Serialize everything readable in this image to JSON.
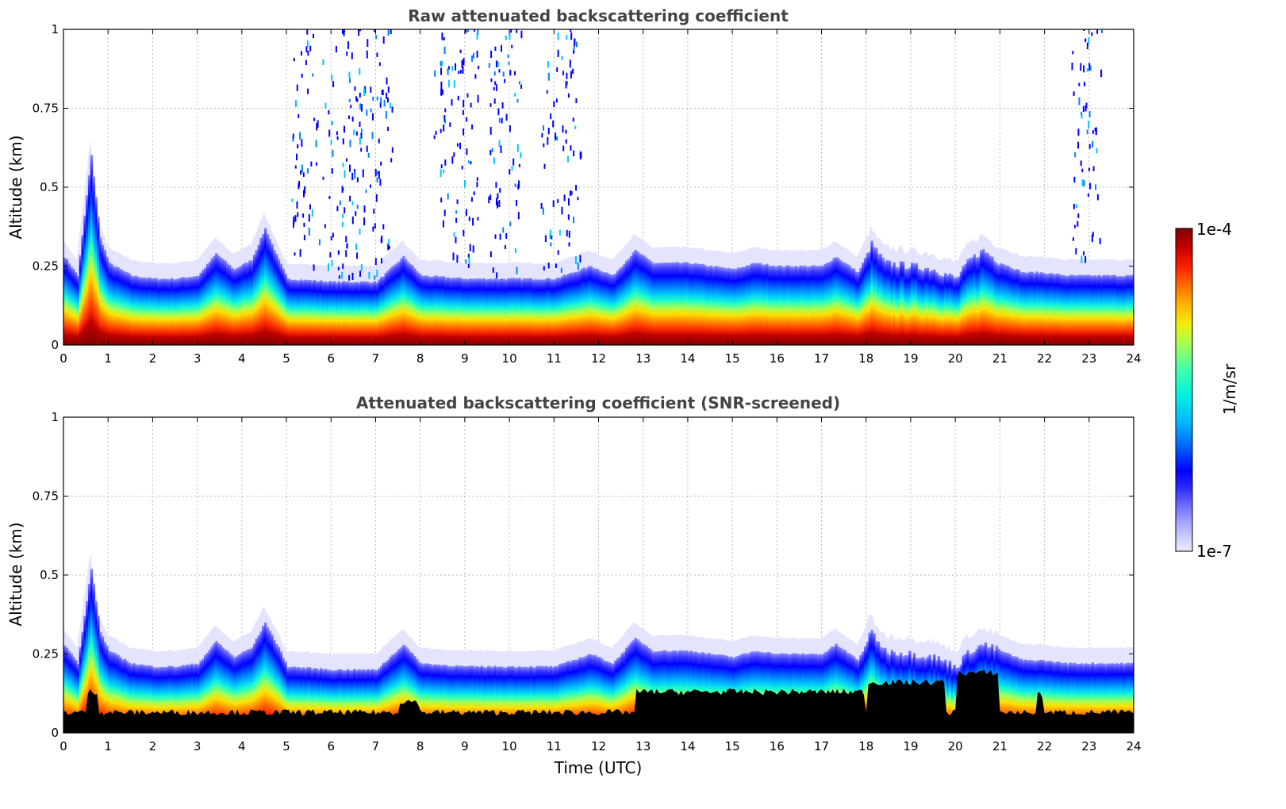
{
  "chart_data": [
    {
      "type": "heatmap",
      "title": "Raw attenuated backscattering coefficient",
      "xlabel": "",
      "ylabel": "Altitude (km)",
      "xlim": [
        0,
        24
      ],
      "ylim": [
        0,
        1
      ],
      "x_ticks": [
        "0",
        "1",
        "2",
        "3",
        "4",
        "5",
        "6",
        "7",
        "8",
        "9",
        "10",
        "11",
        "12",
        "13",
        "14",
        "15",
        "16",
        "17",
        "18",
        "19",
        "20",
        "21",
        "22",
        "23",
        "24"
      ],
      "y_ticks": [
        "0",
        "0.25",
        "0.5",
        "0.75",
        "1"
      ],
      "grid": true,
      "colorscale": "jet",
      "screened": false,
      "boundary_layer_top_km": [
        [
          0,
          0.28
        ],
        [
          0.3,
          0.22
        ],
        [
          0.6,
          0.6
        ],
        [
          0.8,
          0.34
        ],
        [
          1.0,
          0.26
        ],
        [
          1.5,
          0.22
        ],
        [
          2.0,
          0.21
        ],
        [
          2.5,
          0.21
        ],
        [
          3.0,
          0.22
        ],
        [
          3.4,
          0.29
        ],
        [
          3.8,
          0.24
        ],
        [
          4.2,
          0.27
        ],
        [
          4.5,
          0.37
        ],
        [
          4.8,
          0.27
        ],
        [
          5.0,
          0.21
        ],
        [
          6.0,
          0.2
        ],
        [
          7.0,
          0.2
        ],
        [
          7.6,
          0.28
        ],
        [
          8.0,
          0.22
        ],
        [
          9.0,
          0.21
        ],
        [
          10.0,
          0.21
        ],
        [
          11.0,
          0.21
        ],
        [
          11.8,
          0.25
        ],
        [
          12.3,
          0.22
        ],
        [
          12.8,
          0.3
        ],
        [
          13.2,
          0.26
        ],
        [
          14.0,
          0.26
        ],
        [
          15.0,
          0.24
        ],
        [
          15.5,
          0.26
        ],
        [
          16.0,
          0.25
        ],
        [
          17.0,
          0.25
        ],
        [
          17.3,
          0.28
        ],
        [
          17.8,
          0.23
        ],
        [
          18.1,
          0.32
        ],
        [
          18.4,
          0.26
        ],
        [
          19.0,
          0.25
        ],
        [
          19.5,
          0.24
        ],
        [
          20.0,
          0.21
        ],
        [
          20.3,
          0.27
        ],
        [
          20.6,
          0.3
        ],
        [
          21.0,
          0.26
        ],
        [
          21.5,
          0.23
        ],
        [
          21.9,
          0.23
        ],
        [
          22.5,
          0.22
        ],
        [
          23.0,
          0.22
        ],
        [
          24.0,
          0.22
        ]
      ],
      "noise_regions_hours": [
        [
          5.1,
          7.4
        ],
        [
          8.3,
          9.3
        ],
        [
          9.5,
          10.3
        ],
        [
          10.7,
          11.6
        ],
        [
          22.6,
          23.3
        ]
      ]
    },
    {
      "type": "heatmap",
      "title": "Attenuated backscattering coefficient (SNR-screened)",
      "xlabel": "Time (UTC)",
      "ylabel": "Altitude (km)",
      "xlim": [
        0,
        24
      ],
      "ylim": [
        0,
        1
      ],
      "x_ticks": [
        "0",
        "1",
        "2",
        "3",
        "4",
        "5",
        "6",
        "7",
        "8",
        "9",
        "10",
        "11",
        "12",
        "13",
        "14",
        "15",
        "16",
        "17",
        "18",
        "19",
        "20",
        "21",
        "22",
        "23",
        "24"
      ],
      "y_ticks": [
        "0",
        "0.25",
        "0.5",
        "0.75",
        "1"
      ],
      "grid": true,
      "colorscale": "jet",
      "screened": true,
      "boundary_layer_top_km": [
        [
          0,
          0.28
        ],
        [
          0.3,
          0.22
        ],
        [
          0.6,
          0.52
        ],
        [
          0.8,
          0.32
        ],
        [
          1.0,
          0.26
        ],
        [
          1.5,
          0.22
        ],
        [
          2.0,
          0.21
        ],
        [
          2.5,
          0.21
        ],
        [
          3.0,
          0.22
        ],
        [
          3.4,
          0.29
        ],
        [
          3.8,
          0.24
        ],
        [
          4.2,
          0.27
        ],
        [
          4.5,
          0.35
        ],
        [
          4.8,
          0.27
        ],
        [
          5.0,
          0.21
        ],
        [
          6.0,
          0.2
        ],
        [
          7.0,
          0.2
        ],
        [
          7.6,
          0.28
        ],
        [
          8.0,
          0.22
        ],
        [
          9.0,
          0.21
        ],
        [
          10.0,
          0.21
        ],
        [
          11.0,
          0.21
        ],
        [
          11.8,
          0.25
        ],
        [
          12.3,
          0.22
        ],
        [
          12.8,
          0.3
        ],
        [
          13.2,
          0.26
        ],
        [
          14.0,
          0.26
        ],
        [
          15.0,
          0.24
        ],
        [
          15.5,
          0.26
        ],
        [
          16.0,
          0.25
        ],
        [
          17.0,
          0.25
        ],
        [
          17.3,
          0.28
        ],
        [
          17.8,
          0.23
        ],
        [
          18.1,
          0.32
        ],
        [
          18.4,
          0.26
        ],
        [
          19.0,
          0.25
        ],
        [
          19.5,
          0.24
        ],
        [
          20.0,
          0.21
        ],
        [
          20.3,
          0.26
        ],
        [
          20.6,
          0.28
        ],
        [
          21.0,
          0.26
        ],
        [
          21.5,
          0.23
        ],
        [
          21.9,
          0.23
        ],
        [
          22.5,
          0.22
        ],
        [
          23.0,
          0.22
        ],
        [
          24.0,
          0.22
        ]
      ]
    }
  ],
  "colorbar": {
    "label": "1/m/sr",
    "max_label": "1e-4",
    "min_label": "1e-7",
    "min": 1e-07,
    "max": 0.0001,
    "scale": "log",
    "colors": [
      "#ececff",
      "#c8c8ff",
      "#9a9aff",
      "#6464ff",
      "#2828ff",
      "#0000ff",
      "#0040ff",
      "#0080ff",
      "#00b8ff",
      "#00e8f0",
      "#20ffc8",
      "#60ff90",
      "#a0ff58",
      "#e0ff20",
      "#ffe000",
      "#ffa800",
      "#ff7000",
      "#ff3800",
      "#e80000",
      "#b00000",
      "#800000"
    ]
  }
}
